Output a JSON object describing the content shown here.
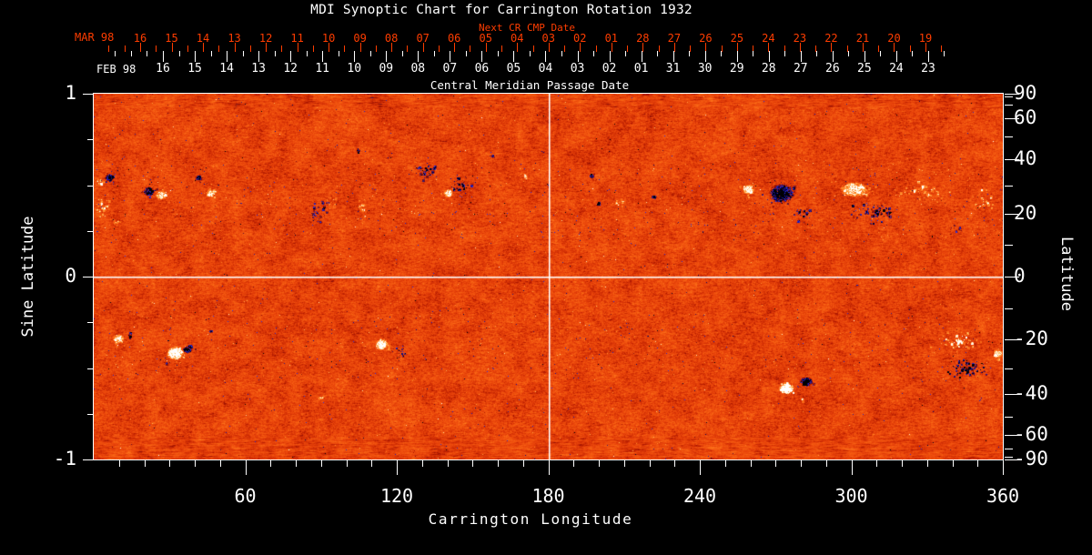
{
  "title": "MDI Synoptic Chart for Carrington Rotation 1932",
  "colors": {
    "background": "#000000",
    "text": "#ffffff",
    "accent_red": "#ff3d00",
    "grid_line": "#ffffff"
  },
  "next_cr_axis": {
    "era_label": "MAR 98",
    "caption": "Next CR CMP Date",
    "day_labels": [
      "16",
      "15",
      "14",
      "13",
      "12",
      "11",
      "10",
      "09",
      "08",
      "07",
      "06",
      "05",
      "04",
      "03",
      "02",
      "01",
      "28",
      "27",
      "26",
      "25",
      "24",
      "23",
      "22",
      "21",
      "20",
      "19"
    ]
  },
  "cmp_axis": {
    "era_label": "FEB 98",
    "caption": "Central Meridian Passage Date",
    "day_labels": [
      "16",
      "15",
      "14",
      "13",
      "12",
      "11",
      "10",
      "09",
      "08",
      "07",
      "06",
      "05",
      "04",
      "03",
      "02",
      "01",
      "31",
      "30",
      "29",
      "28",
      "27",
      "26",
      "25",
      "24",
      "23"
    ]
  },
  "x_axis": {
    "title": "Carrington Longitude",
    "range": [
      0,
      360
    ],
    "major_ticks": [
      60,
      120,
      180,
      240,
      300,
      360
    ],
    "minor_tick_step": 10
  },
  "y_axis_left": {
    "title": "Sine Latitude",
    "range": [
      -1,
      1
    ],
    "major_ticks": [
      1,
      0,
      -1
    ],
    "minor_ticks": [
      0.75,
      0.5,
      0.25,
      -0.25,
      -0.5,
      -0.75
    ]
  },
  "y_axis_right": {
    "title": "Latitude",
    "major_ticks": [
      90,
      60,
      40,
      20,
      0,
      -20,
      -40,
      -60,
      -90
    ],
    "minor_ticks": [
      80,
      70,
      50,
      30,
      10,
      -10,
      -30,
      -50,
      -70,
      -80
    ]
  },
  "chart_data": {
    "type": "heatmap",
    "title": "MDI Synoptic Chart for Carrington Rotation 1932",
    "xlabel": "Carrington Longitude",
    "ylabel_left": "Sine Latitude",
    "ylabel_right": "Latitude",
    "x_range_deg": [
      0,
      360
    ],
    "y_range_sine_latitude": [
      -1,
      1
    ],
    "description": "Full-surface photospheric magnetic field map: orange/red granular background (weak field) with dark navy/black patches (negative polarity) and white/cream patches (positive polarity) in two active-region latitude bands; white reference lines at longitude 180 and the equator.",
    "reference_lines": {
      "longitude_deg": 180,
      "sine_latitude": 0
    },
    "palette": [
      [
        0.0,
        "#000004"
      ],
      [
        0.05,
        "#00003c"
      ],
      [
        0.1,
        "#0d0d9e"
      ],
      [
        0.15,
        "#3333e8"
      ],
      [
        0.19,
        "#2a1f96"
      ],
      [
        0.23,
        "#55123a"
      ],
      [
        0.26,
        "#7d0e10"
      ],
      [
        0.32,
        "#aa1600"
      ],
      [
        0.4,
        "#cf2d04"
      ],
      [
        0.5,
        "#e8430a"
      ],
      [
        0.6,
        "#f35810"
      ],
      [
        0.7,
        "#fc6f19"
      ],
      [
        0.8,
        "#ff8f2e"
      ],
      [
        0.88,
        "#ffb95e"
      ],
      [
        0.94,
        "#ffe3a6"
      ],
      [
        1.0,
        "#ffffff"
      ]
    ],
    "network_bands": [
      {
        "slat_min": 0.2,
        "slat_max": 0.62,
        "neg": 0.004,
        "pos": 0.003
      },
      {
        "slat_min": -0.55,
        "slat_max": -0.18,
        "neg": 0.0025,
        "pos": 0.002
      }
    ],
    "active_regions": [
      {
        "lon": 2.5,
        "slat": 0.52,
        "pol": 1,
        "amp": 0.4,
        "rx": 4,
        "ry": 4,
        "style": "speckly",
        "n": 18
      },
      {
        "lon": 6.1,
        "slat": 0.54,
        "pol": -1,
        "amp": 0.55,
        "rx": 5,
        "ry": 4,
        "style": "core",
        "n": 10
      },
      {
        "lon": 21.6,
        "slat": 0.47,
        "pol": -1,
        "amp": 0.6,
        "rx": 6,
        "ry": 5,
        "style": "core",
        "n": 12
      },
      {
        "lon": 26.7,
        "slat": 0.45,
        "pol": 1,
        "amp": 0.5,
        "rx": 6,
        "ry": 5,
        "style": "core",
        "n": 15
      },
      {
        "lon": 3.2,
        "slat": 0.38,
        "pol": 1,
        "amp": 0.32,
        "rx": 9,
        "ry": 11,
        "style": "speckly",
        "n": 45
      },
      {
        "lon": 9.0,
        "slat": 0.3,
        "pol": 1,
        "amp": 0.3,
        "rx": 6,
        "ry": 5,
        "style": "speckly",
        "n": 15
      },
      {
        "lon": 41.4,
        "slat": 0.54,
        "pol": -1,
        "amp": 0.5,
        "rx": 4,
        "ry": 3,
        "style": "core",
        "n": 6
      },
      {
        "lon": 46.1,
        "slat": 0.46,
        "pol": 1,
        "amp": 0.45,
        "rx": 5,
        "ry": 4,
        "style": "core",
        "n": 10
      },
      {
        "lon": 89.0,
        "slat": 0.36,
        "pol": -1,
        "amp": 0.35,
        "rx": 10,
        "ry": 13,
        "style": "speckly",
        "n": 40
      },
      {
        "lon": 93.7,
        "slat": 0.42,
        "pol": 1,
        "amp": 0.3,
        "rx": 6,
        "ry": 8,
        "style": "speckly",
        "n": 18
      },
      {
        "lon": 104.5,
        "slat": 0.69,
        "pol": -1,
        "amp": 0.45,
        "rx": 4,
        "ry": 3,
        "style": "speckly",
        "n": 10
      },
      {
        "lon": 131.5,
        "slat": 0.58,
        "pol": -1,
        "amp": 0.45,
        "rx": 14,
        "ry": 8,
        "style": "speckly",
        "n": 45
      },
      {
        "lon": 144.9,
        "slat": 0.5,
        "pol": -1,
        "amp": 0.5,
        "rx": 10,
        "ry": 9,
        "style": "speckly",
        "n": 35
      },
      {
        "lon": 140.2,
        "slat": 0.46,
        "pol": 1,
        "amp": 0.55,
        "rx": 5,
        "ry": 4,
        "style": "core",
        "n": 8
      },
      {
        "lon": 106.3,
        "slat": 0.38,
        "pol": 1,
        "amp": 0.28,
        "rx": 7,
        "ry": 12,
        "style": "speckly",
        "n": 30
      },
      {
        "lon": 157.5,
        "slat": 0.66,
        "pol": -1,
        "amp": 0.4,
        "rx": 3,
        "ry": 2,
        "style": "speckly",
        "n": 6
      },
      {
        "lon": 170.0,
        "slat": 0.55,
        "pol": 1,
        "amp": 0.3,
        "rx": 5,
        "ry": 4,
        "style": "speckly",
        "n": 12
      },
      {
        "lon": 197.1,
        "slat": 0.55,
        "pol": -1,
        "amp": 0.45,
        "rx": 3,
        "ry": 3,
        "style": "core",
        "n": 5
      },
      {
        "lon": 199.6,
        "slat": 0.4,
        "pol": -1,
        "amp": 0.4,
        "rx": 3,
        "ry": 3,
        "style": "speckly",
        "n": 8
      },
      {
        "lon": 207.9,
        "slat": 0.41,
        "pol": 1,
        "amp": 0.28,
        "rx": 6,
        "ry": 7,
        "style": "speckly",
        "n": 15
      },
      {
        "lon": 221.6,
        "slat": 0.44,
        "pol": -1,
        "amp": 0.45,
        "rx": 3,
        "ry": 2,
        "style": "core",
        "n": 4
      },
      {
        "lon": 259.1,
        "slat": 0.48,
        "pol": 1,
        "amp": 0.55,
        "rx": 6,
        "ry": 5,
        "style": "core",
        "n": 12
      },
      {
        "lon": 272.1,
        "slat": 0.46,
        "pol": -1,
        "amp": 0.6,
        "rx": 13,
        "ry": 10,
        "style": "core",
        "n": 40
      },
      {
        "lon": 280.0,
        "slat": 0.35,
        "pol": -1,
        "amp": 0.45,
        "rx": 9,
        "ry": 7,
        "style": "speckly",
        "n": 25
      },
      {
        "lon": 300.9,
        "slat": 0.48,
        "pol": 1,
        "amp": 0.6,
        "rx": 15,
        "ry": 8,
        "style": "core",
        "n": 25
      },
      {
        "lon": 309.5,
        "slat": 0.35,
        "pol": -1,
        "amp": 0.5,
        "rx": 24,
        "ry": 11,
        "style": "speckly",
        "n": 70
      },
      {
        "lon": 327.6,
        "slat": 0.47,
        "pol": 1,
        "amp": 0.34,
        "rx": 30,
        "ry": 10,
        "style": "speckly",
        "n": 60
      },
      {
        "lon": 352.8,
        "slat": 0.41,
        "pol": 1,
        "amp": 0.4,
        "rx": 12,
        "ry": 13,
        "style": "speckly",
        "n": 35
      },
      {
        "lon": 341.0,
        "slat": 0.26,
        "pol": -1,
        "amp": 0.35,
        "rx": 8,
        "ry": 5,
        "style": "speckly",
        "n": 12
      },
      {
        "lon": 9.7,
        "slat": -0.34,
        "pol": 1,
        "amp": 0.55,
        "rx": 6,
        "ry": 5,
        "style": "core",
        "n": 12
      },
      {
        "lon": 14.1,
        "slat": -0.32,
        "pol": -1,
        "amp": 0.4,
        "rx": 4,
        "ry": 3,
        "style": "speckly",
        "n": 10
      },
      {
        "lon": 32.1,
        "slat": -0.42,
        "pol": 1,
        "amp": 0.7,
        "rx": 9,
        "ry": 7,
        "style": "core",
        "n": 20
      },
      {
        "lon": 37.1,
        "slat": -0.4,
        "pol": -1,
        "amp": 0.55,
        "rx": 5,
        "ry": 4,
        "style": "core",
        "n": 10
      },
      {
        "lon": 28.1,
        "slat": -0.47,
        "pol": -1,
        "amp": 0.4,
        "rx": 3,
        "ry": 2,
        "style": "speckly",
        "n": 5
      },
      {
        "lon": 45.8,
        "slat": -0.29,
        "pol": -1,
        "amp": 0.35,
        "rx": 3,
        "ry": 2,
        "style": "speckly",
        "n": 5
      },
      {
        "lon": 113.9,
        "slat": -0.37,
        "pol": 1,
        "amp": 0.55,
        "rx": 7,
        "ry": 6,
        "style": "core",
        "n": 20
      },
      {
        "lon": 121.1,
        "slat": -0.41,
        "pol": -1,
        "amp": 0.4,
        "rx": 7,
        "ry": 9,
        "style": "speckly",
        "n": 25
      },
      {
        "lon": 89.7,
        "slat": -0.66,
        "pol": 1,
        "amp": 0.4,
        "rx": 3,
        "ry": 2,
        "style": "core",
        "n": 4
      },
      {
        "lon": 274.2,
        "slat": -0.61,
        "pol": 1,
        "amp": 0.75,
        "rx": 8,
        "ry": 6,
        "style": "core",
        "n": 16
      },
      {
        "lon": 282.2,
        "slat": -0.57,
        "pol": -1,
        "amp": 0.55,
        "rx": 7,
        "ry": 5,
        "style": "core",
        "n": 12
      },
      {
        "lon": 280.4,
        "slat": -0.67,
        "pol": 1,
        "amp": 0.4,
        "rx": 3,
        "ry": 2,
        "style": "speckly",
        "n": 5
      },
      {
        "lon": 341.9,
        "slat": -0.35,
        "pol": 1,
        "amp": 0.5,
        "rx": 26,
        "ry": 9,
        "style": "speckly",
        "n": 75
      },
      {
        "lon": 345.5,
        "slat": -0.5,
        "pol": -1,
        "amp": 0.6,
        "rx": 22,
        "ry": 10,
        "style": "speckly",
        "n": 75
      },
      {
        "lon": 357.8,
        "slat": -0.42,
        "pol": 1,
        "amp": 0.5,
        "rx": 5,
        "ry": 5,
        "style": "core",
        "n": 8
      }
    ]
  }
}
